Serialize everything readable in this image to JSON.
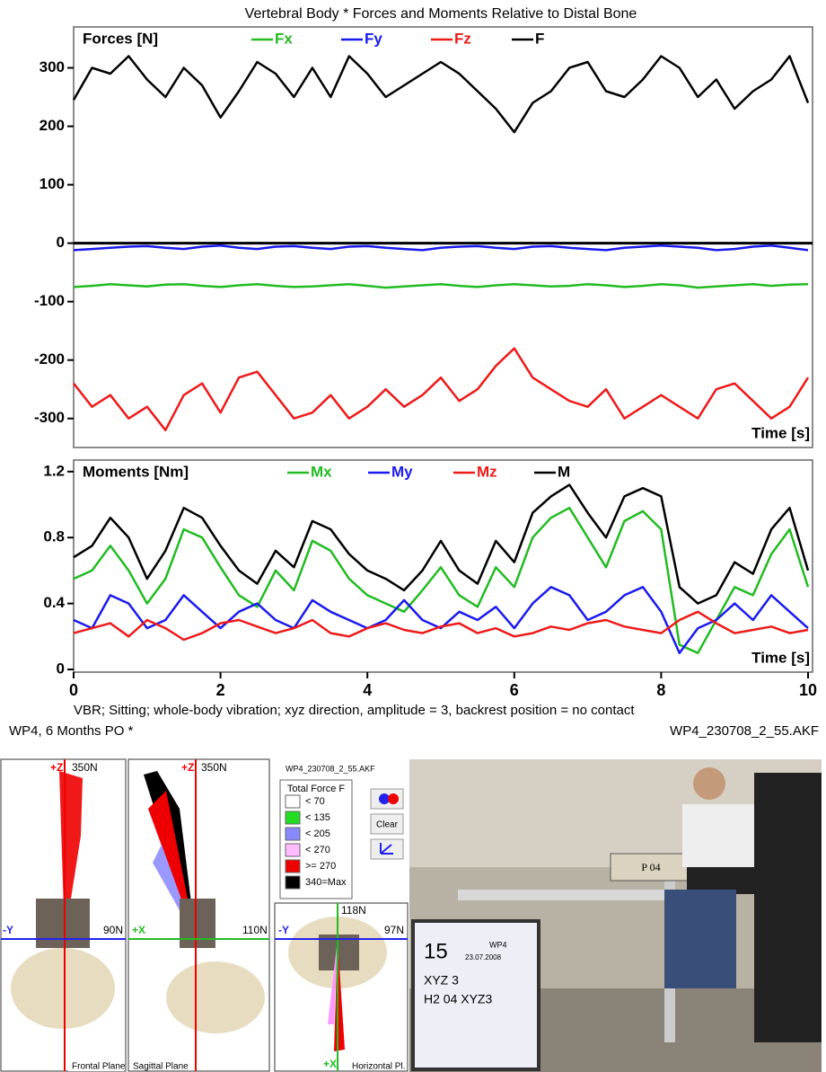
{
  "chart_data": [
    {
      "type": "line",
      "title": "Vertebral Body * Forces and Moments  Relative to Distal Bone",
      "legend_title": "Forces  [N]",
      "xlabel": "Time  [s]",
      "x": [
        0,
        0.25,
        0.5,
        0.75,
        1,
        1.25,
        1.5,
        1.75,
        2,
        2.25,
        2.5,
        2.75,
        3,
        3.25,
        3.5,
        3.75,
        4,
        4.25,
        4.5,
        4.75,
        5,
        5.25,
        5.5,
        5.75,
        6,
        6.25,
        6.5,
        6.75,
        7,
        7.25,
        7.5,
        7.75,
        8,
        8.25,
        8.5,
        8.75,
        9,
        9.25,
        9.5,
        9.75,
        10
      ],
      "xlim": [
        0,
        10
      ],
      "ylim": [
        -345,
        370
      ],
      "yticks": [
        -300,
        -200,
        -100,
        0,
        100,
        200,
        300
      ],
      "zero_line": true,
      "series": [
        {
          "name": "Fx",
          "color": "#22bb22",
          "values": [
            -75,
            -73,
            -70,
            -72,
            -74,
            -71,
            -70,
            -73,
            -75,
            -72,
            -70,
            -73,
            -75,
            -74,
            -72,
            -70,
            -73,
            -76,
            -74,
            -72,
            -70,
            -73,
            -75,
            -72,
            -70,
            -72,
            -74,
            -73,
            -70,
            -72,
            -75,
            -73,
            -70,
            -72,
            -76,
            -74,
            -72,
            -70,
            -73,
            -71,
            -70
          ]
        },
        {
          "name": "Fy",
          "color": "#1a1aee",
          "values": [
            -12,
            -10,
            -8,
            -6,
            -5,
            -8,
            -10,
            -6,
            -4,
            -8,
            -10,
            -6,
            -5,
            -8,
            -10,
            -6,
            -5,
            -8,
            -10,
            -12,
            -8,
            -6,
            -5,
            -8,
            -10,
            -6,
            -5,
            -8,
            -10,
            -12,
            -8,
            -6,
            -4,
            -6,
            -8,
            -12,
            -10,
            -6,
            -4,
            -8,
            -12
          ]
        },
        {
          "name": "Fz",
          "color": "#ee1a1a",
          "values": [
            -240,
            -280,
            -260,
            -300,
            -280,
            -320,
            -260,
            -240,
            -290,
            -230,
            -220,
            -260,
            -300,
            -290,
            -260,
            -300,
            -280,
            -250,
            -280,
            -260,
            -230,
            -270,
            -250,
            -210,
            -180,
            -230,
            -250,
            -270,
            -280,
            -250,
            -300,
            -280,
            -260,
            -280,
            -300,
            -250,
            -240,
            -270,
            -300,
            -280,
            -230
          ]
        },
        {
          "name": "F",
          "color": "#000000",
          "values": [
            245,
            300,
            290,
            320,
            280,
            250,
            300,
            270,
            215,
            260,
            310,
            290,
            250,
            300,
            250,
            320,
            290,
            250,
            270,
            290,
            310,
            290,
            260,
            230,
            190,
            240,
            260,
            300,
            310,
            260,
            250,
            280,
            320,
            300,
            250,
            280,
            230,
            260,
            280,
            320,
            240
          ]
        }
      ]
    },
    {
      "type": "line",
      "legend_title": "Moments  [Nm]",
      "xlabel": "Time  [s]",
      "x": [
        0,
        0.25,
        0.5,
        0.75,
        1,
        1.25,
        1.5,
        1.75,
        2,
        2.25,
        2.5,
        2.75,
        3,
        3.25,
        3.5,
        3.75,
        4,
        4.25,
        4.5,
        4.75,
        5,
        5.25,
        5.5,
        5.75,
        6,
        6.25,
        6.5,
        6.75,
        7,
        7.25,
        7.5,
        7.75,
        8,
        8.25,
        8.5,
        8.75,
        9,
        9.25,
        9.5,
        9.75,
        10
      ],
      "xlim": [
        0,
        10
      ],
      "xticks": [
        0,
        2,
        4,
        6,
        8,
        10
      ],
      "ylim": [
        0,
        1.27
      ],
      "yticks": [
        0,
        0.4,
        0.8,
        1.2
      ],
      "series": [
        {
          "name": "Mx",
          "color": "#22bb22",
          "values": [
            0.55,
            0.6,
            0.75,
            0.6,
            0.4,
            0.55,
            0.85,
            0.8,
            0.62,
            0.45,
            0.38,
            0.6,
            0.48,
            0.78,
            0.72,
            0.55,
            0.45,
            0.4,
            0.35,
            0.48,
            0.62,
            0.45,
            0.38,
            0.62,
            0.5,
            0.8,
            0.92,
            0.98,
            0.8,
            0.62,
            0.9,
            0.96,
            0.85,
            0.15,
            0.1,
            0.3,
            0.5,
            0.45,
            0.7,
            0.85,
            0.5
          ]
        },
        {
          "name": "My",
          "color": "#1a1aee",
          "values": [
            0.3,
            0.25,
            0.45,
            0.4,
            0.25,
            0.3,
            0.45,
            0.35,
            0.25,
            0.35,
            0.4,
            0.3,
            0.25,
            0.42,
            0.35,
            0.3,
            0.25,
            0.3,
            0.42,
            0.3,
            0.25,
            0.35,
            0.3,
            0.38,
            0.25,
            0.4,
            0.5,
            0.45,
            0.3,
            0.35,
            0.45,
            0.5,
            0.35,
            0.1,
            0.25,
            0.3,
            0.4,
            0.3,
            0.45,
            0.35,
            0.25
          ]
        },
        {
          "name": "Mz",
          "color": "#ee1a1a",
          "values": [
            0.22,
            0.25,
            0.28,
            0.2,
            0.3,
            0.25,
            0.18,
            0.22,
            0.28,
            0.3,
            0.26,
            0.22,
            0.25,
            0.3,
            0.22,
            0.2,
            0.25,
            0.28,
            0.24,
            0.22,
            0.26,
            0.28,
            0.22,
            0.25,
            0.2,
            0.22,
            0.26,
            0.24,
            0.28,
            0.3,
            0.26,
            0.24,
            0.22,
            0.3,
            0.35,
            0.28,
            0.22,
            0.24,
            0.26,
            0.22,
            0.24
          ]
        },
        {
          "name": "M",
          "color": "#000000",
          "values": [
            0.68,
            0.75,
            0.92,
            0.8,
            0.55,
            0.72,
            0.98,
            0.92,
            0.75,
            0.6,
            0.52,
            0.72,
            0.62,
            0.9,
            0.85,
            0.7,
            0.6,
            0.55,
            0.48,
            0.6,
            0.78,
            0.6,
            0.52,
            0.78,
            0.65,
            0.95,
            1.05,
            1.12,
            0.95,
            0.8,
            1.05,
            1.1,
            1.05,
            0.5,
            0.4,
            0.45,
            0.65,
            0.58,
            0.85,
            0.98,
            0.6
          ]
        }
      ]
    }
  ],
  "captions": {
    "description": "VBR; Sitting; whole-body vibration; xyz direction, amplitude = 3, backrest position = no contact",
    "subject": "WP4, 6 Months PO  *",
    "file": "WP4_230708_2_55.AKF"
  },
  "frontal": {
    "axis_z": "+Z",
    "force_top": "350N",
    "axis_y": "-Y",
    "force_side": "90N",
    "label": "Frontal Plane"
  },
  "sagittal": {
    "axis_z": "+Z",
    "force_top": "350N",
    "axis_x": "+X",
    "force_side": "110N",
    "label": "Sagittal Plane"
  },
  "force_legend": {
    "file": "WP4_230708_2_55.AKF",
    "title": "Total Force F",
    "button": "Clear",
    "items": [
      {
        "label": "< 70",
        "color": "#ffffff"
      },
      {
        "label": "< 135",
        "color": "#22dd22"
      },
      {
        "label": "< 205",
        "color": "#8888ff"
      },
      {
        "label": "< 270",
        "color": "#ffbbff"
      },
      {
        "label": ">= 270",
        "color": "#ee0000"
      },
      {
        "label": "340=Max",
        "color": "#000000"
      }
    ]
  },
  "horizontal": {
    "force_top": "118N",
    "axis_y": "-Y",
    "force_side": "97N",
    "axis_x": "+X",
    "label": "Horizontal Pl."
  },
  "photo": {
    "sign": "P 04",
    "number": "15",
    "id": "WP4",
    "date": "23.07.2008",
    "line1": "XYZ 3",
    "line2": "H2 04 XYZ3"
  }
}
